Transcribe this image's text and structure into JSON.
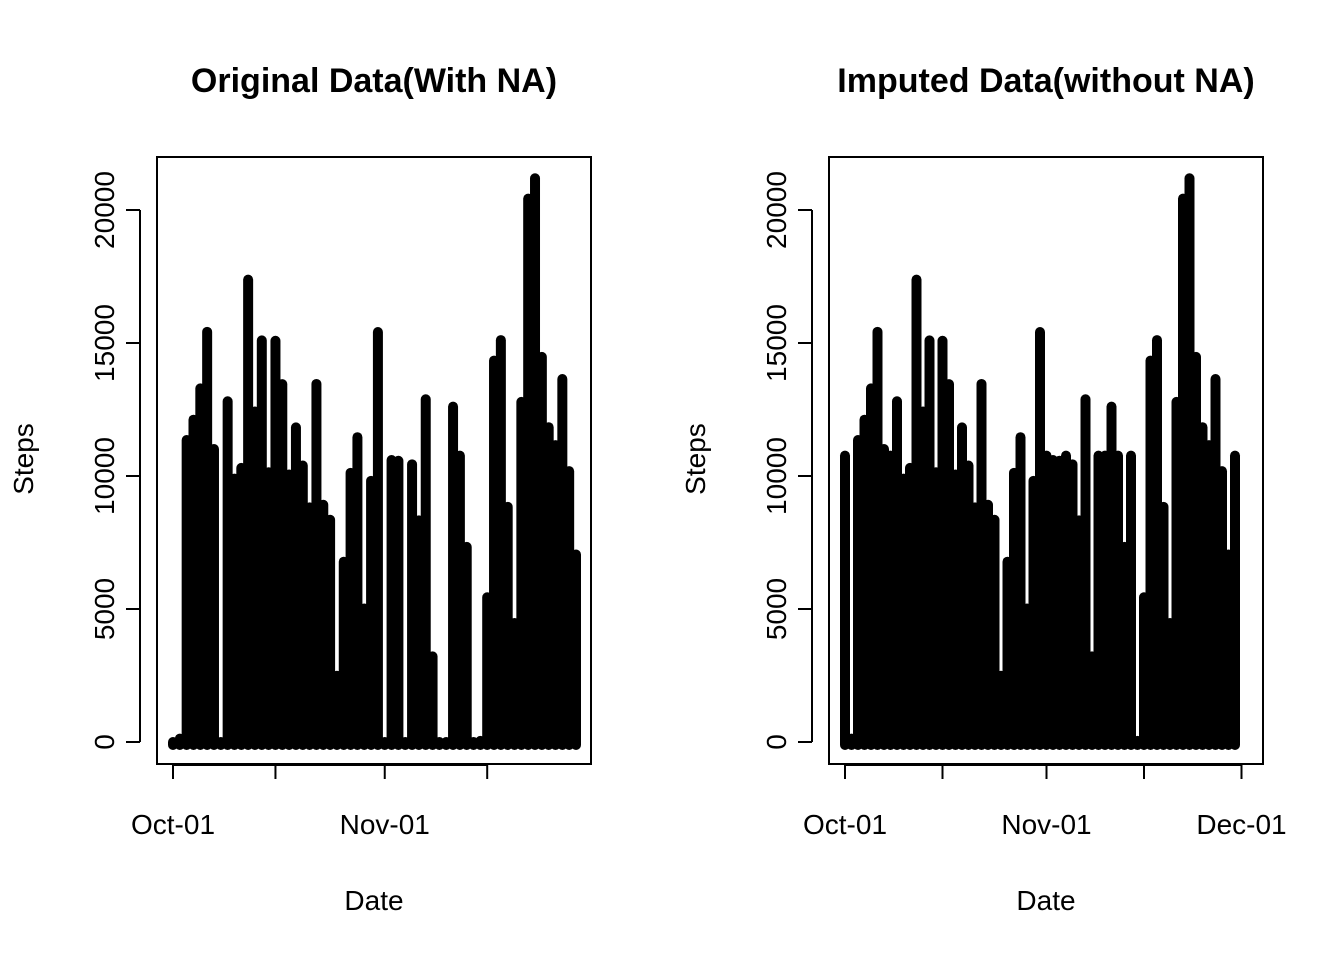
{
  "chart_data": [
    {
      "type": "bar",
      "title": "Original Data(With NA)",
      "xlabel": "Date",
      "ylabel": "Steps",
      "ylim": [
        0,
        22000
      ],
      "y_ticks": [
        "0",
        "5000",
        "10000",
        "15000",
        "20000"
      ],
      "x_ticks": [
        "Oct-01",
        "Nov-01"
      ],
      "dates": [
        "2012-10-01",
        "2012-10-02",
        "2012-10-03",
        "2012-10-04",
        "2012-10-05",
        "2012-10-06",
        "2012-10-07",
        "2012-10-08",
        "2012-10-09",
        "2012-10-10",
        "2012-10-11",
        "2012-10-12",
        "2012-10-13",
        "2012-10-14",
        "2012-10-15",
        "2012-10-16",
        "2012-10-17",
        "2012-10-18",
        "2012-10-19",
        "2012-10-20",
        "2012-10-21",
        "2012-10-22",
        "2012-10-23",
        "2012-10-24",
        "2012-10-25",
        "2012-10-26",
        "2012-10-27",
        "2012-10-28",
        "2012-10-29",
        "2012-10-30",
        "2012-10-31",
        "2012-11-01",
        "2012-11-02",
        "2012-11-03",
        "2012-11-04",
        "2012-11-05",
        "2012-11-06",
        "2012-11-07",
        "2012-11-08",
        "2012-11-09",
        "2012-11-10",
        "2012-11-11",
        "2012-11-12",
        "2012-11-13",
        "2012-11-14",
        "2012-11-15",
        "2012-11-16",
        "2012-11-17",
        "2012-11-18",
        "2012-11-19",
        "2012-11-20",
        "2012-11-21",
        "2012-11-22",
        "2012-11-23",
        "2012-11-24",
        "2012-11-25",
        "2012-11-26",
        "2012-11-27",
        "2012-11-28",
        "2012-11-29"
      ],
      "values": [
        0,
        126,
        11352,
        12116,
        13294,
        15420,
        11015,
        0,
        12811,
        9900,
        10304,
        17382,
        12426,
        15098,
        10139,
        15084,
        13452,
        10056,
        11829,
        10395,
        8821,
        13460,
        8918,
        8355,
        2492,
        6778,
        10119,
        11458,
        5018,
        9819,
        15414,
        0,
        10600,
        10571,
        0,
        10439,
        8334,
        12883,
        3219,
        0,
        0,
        12608,
        10765,
        7336,
        0,
        41,
        5441,
        14339,
        15110,
        8841,
        4472,
        12787,
        20427,
        21194,
        14478,
        11834,
        11162,
        13646,
        10183,
        7047
      ]
    },
    {
      "type": "bar",
      "title": "Imputed Data(without NA)",
      "xlabel": "Date",
      "ylabel": "Steps",
      "ylim": [
        0,
        22000
      ],
      "y_ticks": [
        "0",
        "5000",
        "10000",
        "15000",
        "20000"
      ],
      "x_ticks": [
        "Oct-01",
        "Nov-01",
        "Dec-01"
      ],
      "dates": [
        "2012-10-01",
        "2012-10-02",
        "2012-10-03",
        "2012-10-04",
        "2012-10-05",
        "2012-10-06",
        "2012-10-07",
        "2012-10-08",
        "2012-10-09",
        "2012-10-10",
        "2012-10-11",
        "2012-10-12",
        "2012-10-13",
        "2012-10-14",
        "2012-10-15",
        "2012-10-16",
        "2012-10-17",
        "2012-10-18",
        "2012-10-19",
        "2012-10-20",
        "2012-10-21",
        "2012-10-22",
        "2012-10-23",
        "2012-10-24",
        "2012-10-25",
        "2012-10-26",
        "2012-10-27",
        "2012-10-28",
        "2012-10-29",
        "2012-10-30",
        "2012-10-31",
        "2012-11-01",
        "2012-11-02",
        "2012-11-03",
        "2012-11-04",
        "2012-11-05",
        "2012-11-06",
        "2012-11-07",
        "2012-11-08",
        "2012-11-09",
        "2012-11-10",
        "2012-11-11",
        "2012-11-12",
        "2012-11-13",
        "2012-11-14",
        "2012-11-15",
        "2012-11-16",
        "2012-11-17",
        "2012-11-18",
        "2012-11-19",
        "2012-11-20",
        "2012-11-21",
        "2012-11-22",
        "2012-11-23",
        "2012-11-24",
        "2012-11-25",
        "2012-11-26",
        "2012-11-27",
        "2012-11-28",
        "2012-11-29",
        "2012-11-30"
      ],
      "values": [
        10766,
        126,
        11352,
        12116,
        13294,
        15420,
        11015,
        10766,
        12811,
        9900,
        10304,
        17382,
        12426,
        15098,
        10139,
        15084,
        13452,
        10056,
        11829,
        10395,
        8821,
        13460,
        8918,
        8355,
        2492,
        6778,
        10119,
        11458,
        5018,
        9819,
        15414,
        10766,
        10600,
        10571,
        10766,
        10439,
        8334,
        12883,
        3219,
        10766,
        10766,
        12608,
        10765,
        7336,
        10766,
        41,
        5441,
        14339,
        15110,
        8841,
        4472,
        12787,
        20427,
        21194,
        14478,
        11834,
        11162,
        13646,
        10183,
        7047,
        10766
      ]
    }
  ]
}
